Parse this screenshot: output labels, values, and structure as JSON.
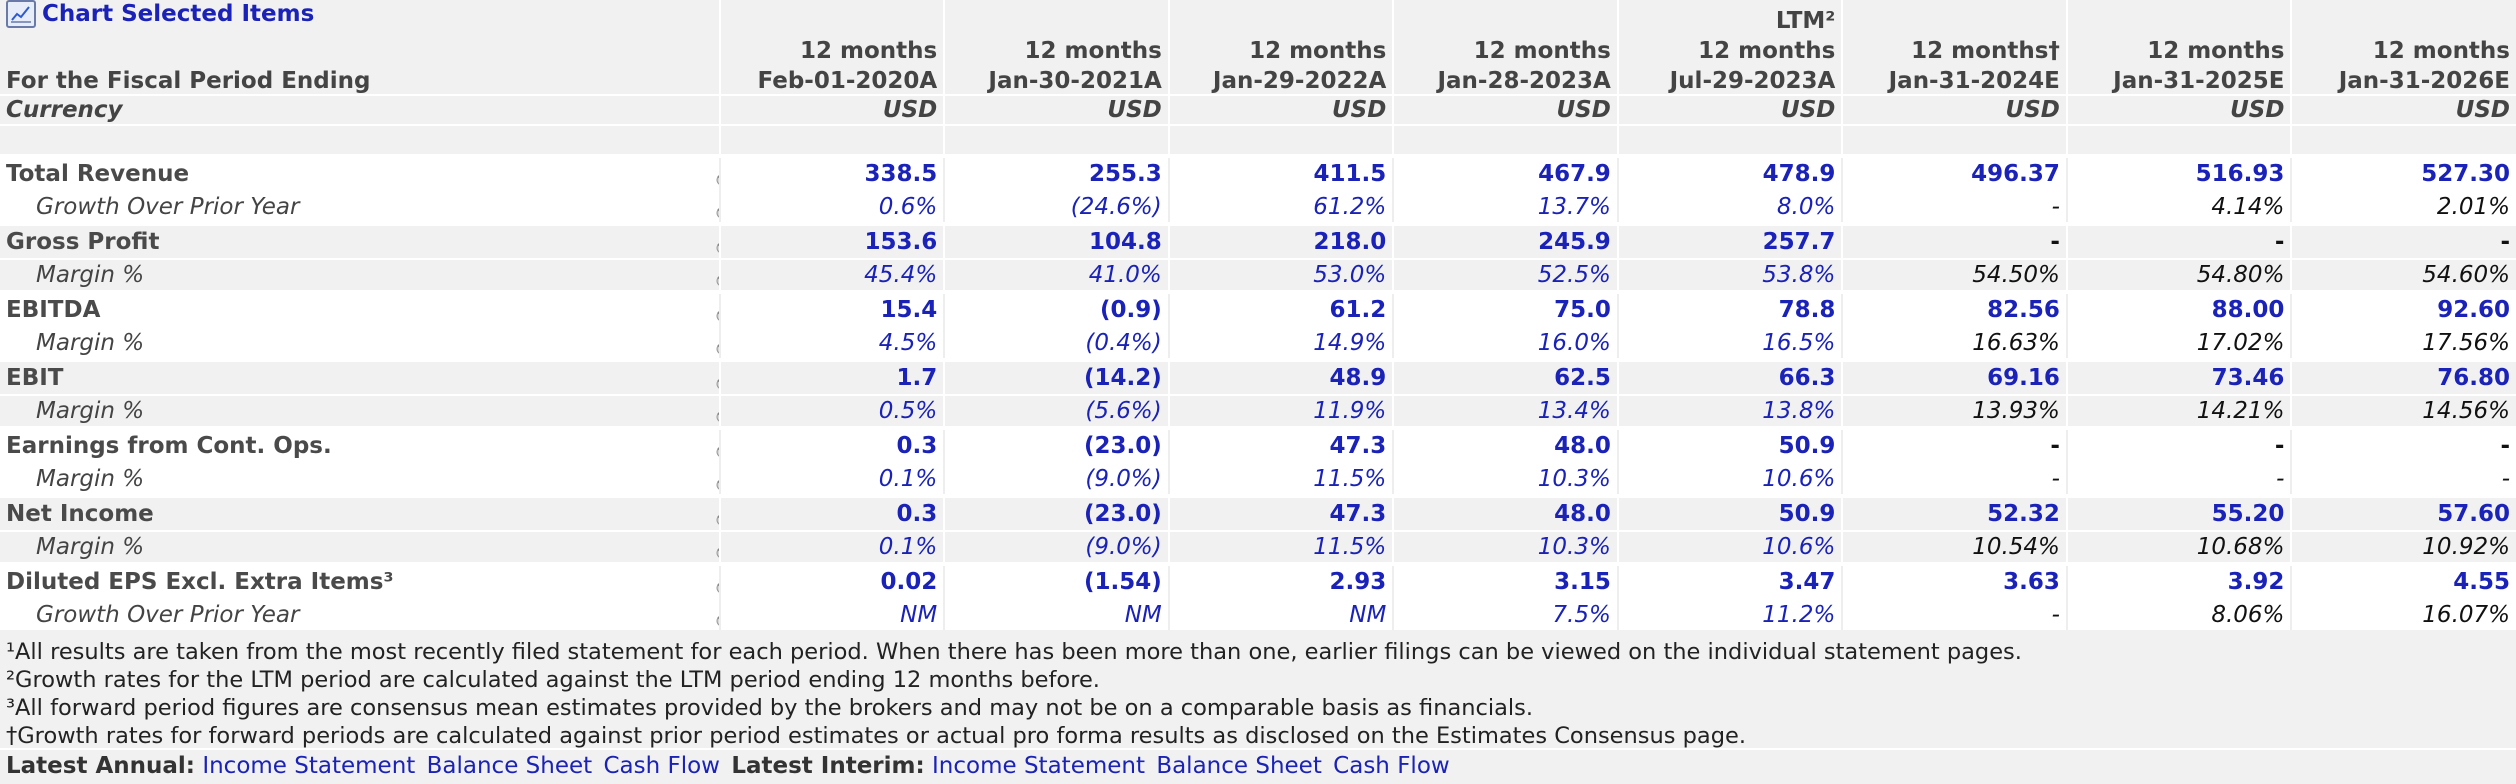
{
  "header": {
    "chart_link": "Chart Selected Items",
    "period_label": "For the Fiscal Period Ending",
    "currency_label": "Currency",
    "columns": [
      {
        "top": "",
        "mid": "12 months",
        "date": "Feb-01-2020A",
        "currency": "USD"
      },
      {
        "top": "",
        "mid": "12 months",
        "date": "Jan-30-2021A",
        "currency": "USD"
      },
      {
        "top": "",
        "mid": "12 months",
        "date": "Jan-29-2022A",
        "currency": "USD"
      },
      {
        "top": "",
        "mid": "12 months",
        "date": "Jan-28-2023A",
        "currency": "USD"
      },
      {
        "top": "LTM²",
        "mid": "12 months",
        "date": "Jul-29-2023A",
        "currency": "USD"
      },
      {
        "top": "",
        "mid": "12 months†",
        "date": "Jan-31-2024E",
        "currency": "USD"
      },
      {
        "top": "",
        "mid": "12 months",
        "date": "Jan-31-2025E",
        "currency": "USD"
      },
      {
        "top": "",
        "mid": "12 months",
        "date": "Jan-31-2026E",
        "currency": "USD"
      }
    ]
  },
  "rows": [
    {
      "label": "Total Revenue",
      "type": "main",
      "values": [
        "338.5",
        "255.3",
        "411.5",
        "467.9",
        "478.9",
        "496.37",
        "516.93",
        "527.30"
      ]
    },
    {
      "label": "Growth Over Prior Year",
      "type": "sub",
      "values": [
        "0.6%",
        "(24.6%)",
        "61.2%",
        "13.7%",
        "8.0%",
        "-",
        "4.14%",
        "2.01%"
      ]
    },
    {
      "label": "Gross Profit",
      "type": "main",
      "values": [
        "153.6",
        "104.8",
        "218.0",
        "245.9",
        "257.7",
        "-",
        "-",
        "-"
      ]
    },
    {
      "label": "Margin %",
      "type": "sub",
      "values": [
        "45.4%",
        "41.0%",
        "53.0%",
        "52.5%",
        "53.8%",
        "54.50%",
        "54.80%",
        "54.60%"
      ]
    },
    {
      "label": "EBITDA",
      "type": "main",
      "values": [
        "15.4",
        "(0.9)",
        "61.2",
        "75.0",
        "78.8",
        "82.56",
        "88.00",
        "92.60"
      ]
    },
    {
      "label": "Margin %",
      "type": "sub",
      "values": [
        "4.5%",
        "(0.4%)",
        "14.9%",
        "16.0%",
        "16.5%",
        "16.63%",
        "17.02%",
        "17.56%"
      ]
    },
    {
      "label": "EBIT",
      "type": "main",
      "values": [
        "1.7",
        "(14.2)",
        "48.9",
        "62.5",
        "66.3",
        "69.16",
        "73.46",
        "76.80"
      ]
    },
    {
      "label": "Margin %",
      "type": "sub",
      "values": [
        "0.5%",
        "(5.6%)",
        "11.9%",
        "13.4%",
        "13.8%",
        "13.93%",
        "14.21%",
        "14.56%"
      ]
    },
    {
      "label": "Earnings from Cont. Ops.",
      "type": "main",
      "values": [
        "0.3",
        "(23.0)",
        "47.3",
        "48.0",
        "50.9",
        "-",
        "-",
        "-"
      ]
    },
    {
      "label": "Margin %",
      "type": "sub",
      "values": [
        "0.1%",
        "(9.0%)",
        "11.5%",
        "10.3%",
        "10.6%",
        "-",
        "-",
        "-"
      ]
    },
    {
      "label": "Net Income",
      "type": "main",
      "values": [
        "0.3",
        "(23.0)",
        "47.3",
        "48.0",
        "50.9",
        "52.32",
        "55.20",
        "57.60"
      ]
    },
    {
      "label": "Margin %",
      "type": "sub",
      "values": [
        "0.1%",
        "(9.0%)",
        "11.5%",
        "10.3%",
        "10.6%",
        "10.54%",
        "10.68%",
        "10.92%"
      ]
    },
    {
      "label": "Diluted EPS Excl. Extra Items³",
      "type": "main",
      "values": [
        "0.02",
        "(1.54)",
        "2.93",
        "3.15",
        "3.47",
        "3.63",
        "3.92",
        "4.55"
      ]
    },
    {
      "label": "Growth Over Prior Year",
      "type": "sub",
      "values": [
        "NM",
        "NM",
        "NM",
        "7.5%",
        "11.2%",
        "-",
        "8.06%",
        "16.07%"
      ]
    }
  ],
  "footnotes": [
    "¹All results are taken from the most recently filed statement for each period. When there has been more than one, earlier filings can be viewed on the individual statement pages.",
    "²Growth rates for the LTM period are calculated against the LTM period ending 12 months before.",
    "³All forward period figures are consensus mean estimates provided by the brokers and may not be on a comparable basis as financials.",
    "†Growth rates for forward periods are calculated against prior period estimates or actual pro forma results as disclosed on the Estimates Consensus page."
  ],
  "latest": {
    "annual_label": "Latest Annual:",
    "interim_label": "Latest Interim:",
    "annual_links": [
      "Income Statement",
      "Balance Sheet",
      "Cash Flow"
    ],
    "interim_links": [
      "Income Statement",
      "Balance Sheet",
      "Cash Flow"
    ]
  },
  "colors": {
    "link": "#1a22b8",
    "actual_value": "#1a22b8",
    "estimate_value": "#111111",
    "header_text": "#444444"
  },
  "icons": {
    "chart": "chart-icon",
    "row_action": "download-icon"
  }
}
